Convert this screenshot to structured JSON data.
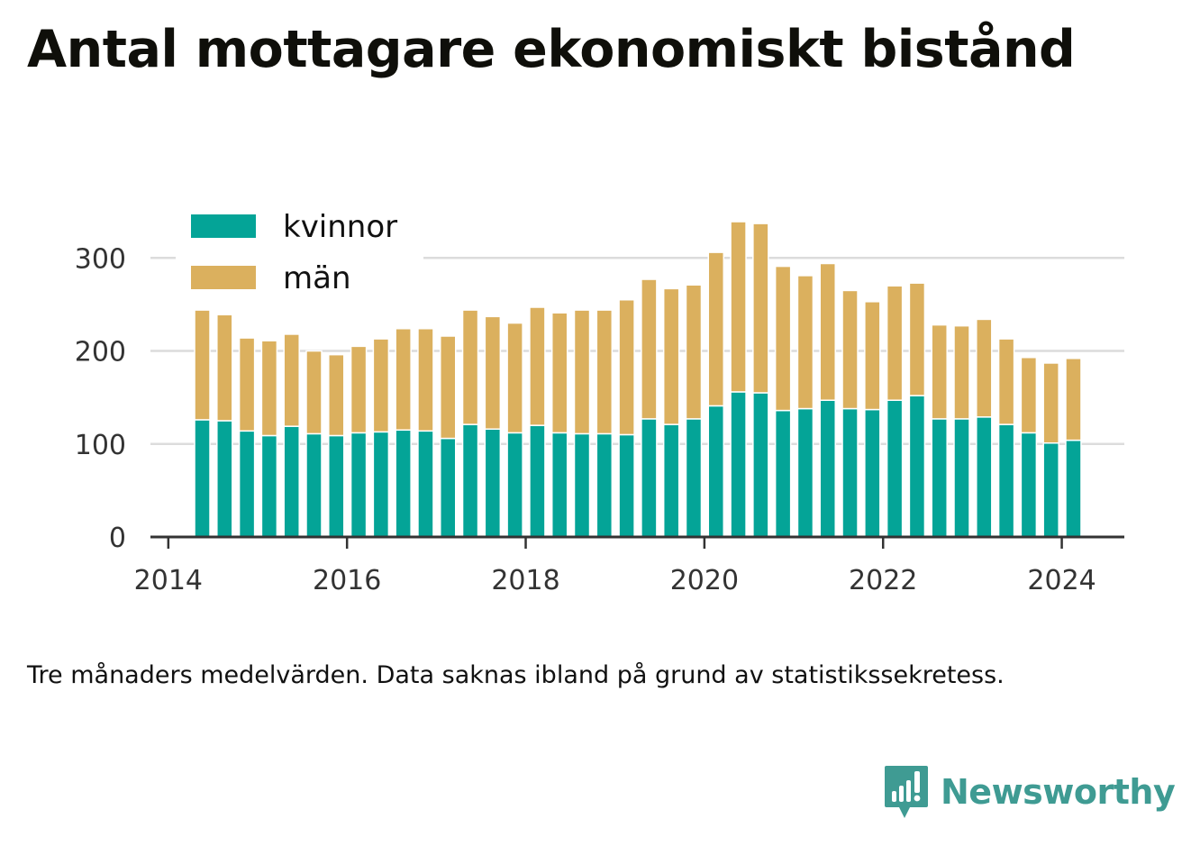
{
  "title": "Antal mottagare ekonomiskt bistånd",
  "footnote": "Tre månaders medelvärden. Data saknas ibland på grund av statistikssekretess.",
  "brand": {
    "name": "Newsworthy",
    "icon": "newsworthy-logo-icon",
    "color": "#3f9b93"
  },
  "colors": {
    "kvinnor": "#04a497",
    "man": "#dbb05e",
    "grid": "#dcdcdc",
    "axis": "#333333"
  },
  "chart_data": {
    "type": "bar",
    "stacked": true,
    "title": "Antal mottagare ekonomiskt bistånd",
    "xlabel": "",
    "ylabel": "",
    "ylim": [
      0,
      340
    ],
    "xlim": [
      2013.8,
      2024.7
    ],
    "grid": "horizontal",
    "legend_position": "top-left",
    "yticks": [
      0,
      100,
      200,
      300
    ],
    "xticks": [
      2014,
      2016,
      2018,
      2020,
      2022,
      2024
    ],
    "ytick_labels": [
      "0",
      "100",
      "200",
      "300"
    ],
    "xtick_labels": [
      "2014",
      "2016",
      "2018",
      "2020",
      "2022",
      "2024"
    ],
    "x": [
      2014.38,
      2014.63,
      2014.88,
      2015.13,
      2015.38,
      2015.63,
      2015.88,
      2016.13,
      2016.38,
      2016.63,
      2016.88,
      2017.13,
      2017.38,
      2017.63,
      2017.88,
      2018.13,
      2018.38,
      2018.63,
      2018.88,
      2019.13,
      2019.38,
      2019.63,
      2019.88,
      2020.13,
      2020.38,
      2020.63,
      2020.88,
      2021.13,
      2021.38,
      2021.63,
      2021.88,
      2022.13,
      2022.38,
      2022.63,
      2022.88,
      2023.13,
      2023.38,
      2023.63,
      2023.88,
      2024.13
    ],
    "series": [
      {
        "name": "kvinnor",
        "color": "#04a497",
        "values": [
          126,
          125,
          114,
          109,
          119,
          111,
          109,
          112,
          113,
          115,
          114,
          106,
          121,
          116,
          112,
          120,
          112,
          111,
          111,
          110,
          127,
          121,
          127,
          141,
          156,
          155,
          136,
          138,
          147,
          138,
          137,
          147,
          152,
          127,
          127,
          129,
          121,
          112,
          101,
          104
        ]
      },
      {
        "name": "män",
        "color": "#dbb05e",
        "values": [
          118,
          114,
          100,
          102,
          99,
          89,
          87,
          93,
          100,
          109,
          110,
          110,
          123,
          121,
          118,
          127,
          129,
          133,
          133,
          145,
          150,
          146,
          144,
          165,
          183,
          182,
          155,
          143,
          147,
          127,
          116,
          123,
          121,
          101,
          100,
          105,
          92,
          81,
          86,
          88
        ]
      }
    ]
  }
}
